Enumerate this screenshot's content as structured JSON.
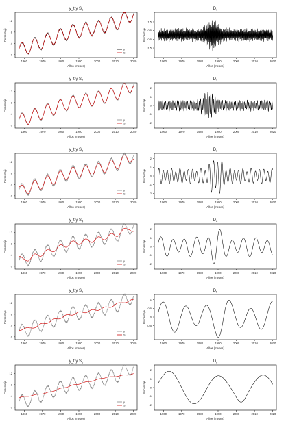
{
  "chart_data": [
    {
      "type": "line",
      "title": "y_t y S_1",
      "xlabel": "Años (meses)",
      "ylabel": "Porcentaje",
      "xlim": [
        1955,
        2022
      ],
      "ylim": [
        -1,
        15
      ],
      "yticks": [
        0,
        4,
        8,
        12
      ],
      "xticks": [
        1960,
        1970,
        1980,
        1990,
        2000,
        2010,
        2020
      ],
      "legend": [
        "y",
        "S"
      ],
      "series": [
        {
          "name": "y",
          "color": "#000000"
        },
        {
          "name": "S",
          "color": "#d01010"
        }
      ],
      "x_start": 1957,
      "x_end": 2020,
      "trend": [
        [
          1957,
          1.5
        ],
        [
          1970,
          4.5
        ],
        [
          1985,
          8.0
        ],
        [
          2000,
          9.5
        ],
        [
          2012,
          11.5
        ],
        [
          2020,
          14.5
        ]
      ],
      "cycle_period": 7,
      "cycle_amp": 2.4,
      "noise_amp": 0.3,
      "smooth_period": 0.5
    },
    {
      "type": "line",
      "title": "D_1",
      "xlabel": "Años (meses)",
      "ylabel": "Porcentaje",
      "xlim": [
        1955,
        2022
      ],
      "ylim": [
        -2.6,
        2.6
      ],
      "yticks": [
        -1.5,
        -0.5,
        0.5,
        1.5
      ],
      "xticks": [
        1960,
        1970,
        1980,
        1990,
        2000,
        2010,
        2020
      ],
      "x_start": 1957,
      "x_end": 2020,
      "detail_period": 0.35,
      "detail_amp": 0.55,
      "burst_center": 1987,
      "burst_amp": 1.6
    },
    {
      "type": "line",
      "title": "y_t y S_2",
      "xlabel": "Años (meses)",
      "ylabel": "Porcentaje",
      "xlim": [
        1955,
        2022
      ],
      "ylim": [
        -1,
        15
      ],
      "yticks": [
        0,
        4,
        8,
        12
      ],
      "xticks": [
        1960,
        1970,
        1980,
        1990,
        2000,
        2010,
        2020
      ],
      "legend": [
        "y",
        "S"
      ],
      "series": [
        {
          "name": "y",
          "color": "#888888"
        },
        {
          "name": "S",
          "color": "#d01010"
        }
      ],
      "x_start": 1957,
      "x_end": 2020,
      "trend": [
        [
          1957,
          1.5
        ],
        [
          1970,
          4.5
        ],
        [
          1985,
          8.0
        ],
        [
          2000,
          9.5
        ],
        [
          2012,
          11.5
        ],
        [
          2020,
          14.5
        ]
      ],
      "cycle_period": 7,
      "cycle_amp": 2.4,
      "noise_amp": 0.3,
      "smooth_period": 1.2
    },
    {
      "type": "line",
      "title": "D_2",
      "xlabel": "Años (meses)",
      "ylabel": "Porcentaje",
      "xlim": [
        1955,
        2022
      ],
      "ylim": [
        -2.6,
        2.6
      ],
      "yticks": [
        -2,
        -1,
        0,
        1,
        2
      ],
      "xticks": [
        1960,
        1970,
        1980,
        1990,
        2000,
        2010,
        2020
      ],
      "x_start": 1957,
      "x_end": 2020,
      "detail_period": 0.8,
      "detail_amp": 0.45,
      "burst_center": 1985,
      "burst_amp": 1.8
    },
    {
      "type": "line",
      "title": "y_t y S_3",
      "xlabel": "Años (meses)",
      "ylabel": "Porcentaje",
      "xlim": [
        1955,
        2022
      ],
      "ylim": [
        -1,
        15
      ],
      "yticks": [
        0,
        4,
        8,
        12
      ],
      "xticks": [
        1960,
        1970,
        1980,
        1990,
        2000,
        2010,
        2020
      ],
      "legend": [
        "y",
        "S"
      ],
      "series": [
        {
          "name": "y",
          "color": "#888888"
        },
        {
          "name": "S",
          "color": "#d01010"
        }
      ],
      "x_start": 1957,
      "x_end": 2020,
      "trend": [
        [
          1957,
          1.5
        ],
        [
          1970,
          4.5
        ],
        [
          1985,
          8.0
        ],
        [
          2000,
          9.5
        ],
        [
          2012,
          11.5
        ],
        [
          2020,
          14.5
        ]
      ],
      "cycle_period": 7,
      "cycle_amp": 2.4,
      "noise_amp": 0.3,
      "smooth_period": 2.5
    },
    {
      "type": "line",
      "title": "D_3",
      "xlabel": "Años (meses)",
      "ylabel": "Porcentaje",
      "xlim": [
        1955,
        2022
      ],
      "ylim": [
        -2.6,
        2.6
      ],
      "yticks": [
        -2,
        -1,
        0,
        1,
        2
      ],
      "xticks": [
        1960,
        1970,
        1980,
        1990,
        2000,
        2010,
        2020
      ],
      "x_start": 1957,
      "x_end": 2020,
      "detail_period": 2.3,
      "detail_amp": 0.7,
      "burst_center": 1989,
      "burst_amp": 1.7
    },
    {
      "type": "line",
      "title": "y_t y S_4",
      "xlabel": "Años (meses)",
      "ylabel": "Porcentaje",
      "xlim": [
        1955,
        2022
      ],
      "ylim": [
        -1,
        15
      ],
      "yticks": [
        0,
        4,
        8,
        12
      ],
      "xticks": [
        1960,
        1970,
        1980,
        1990,
        2000,
        2010,
        2020
      ],
      "legend": [
        "y",
        "S"
      ],
      "series": [
        {
          "name": "y",
          "color": "#888888"
        },
        {
          "name": "S",
          "color": "#d01010"
        }
      ],
      "x_start": 1957,
      "x_end": 2020,
      "trend": [
        [
          1957,
          1.5
        ],
        [
          1970,
          4.5
        ],
        [
          1985,
          8.0
        ],
        [
          2000,
          9.5
        ],
        [
          2012,
          11.5
        ],
        [
          2020,
          14.5
        ]
      ],
      "cycle_period": 7,
      "cycle_amp": 2.4,
      "noise_amp": 0.3,
      "smooth_period": 5
    },
    {
      "type": "line",
      "title": "D_4",
      "xlabel": "Años (meses)",
      "ylabel": "Porcentaje",
      "xlim": [
        1955,
        2022
      ],
      "ylim": [
        -2.6,
        2.6
      ],
      "yticks": [
        -2,
        -1,
        0,
        1,
        2
      ],
      "xticks": [
        1960,
        1970,
        1980,
        1990,
        2000,
        2010,
        2020
      ],
      "x_start": 1957,
      "x_end": 2020,
      "detail_period": 6.5,
      "detail_amp": 0.9,
      "burst_center": 1988,
      "burst_amp": 1.2
    },
    {
      "type": "line",
      "title": "y_t y S_5",
      "xlabel": "Años (meses)",
      "ylabel": "Porcentaje",
      "xlim": [
        1955,
        2022
      ],
      "ylim": [
        -1,
        15
      ],
      "yticks": [
        0,
        4,
        8,
        12
      ],
      "xticks": [
        1960,
        1970,
        1980,
        1990,
        2000,
        2010,
        2020
      ],
      "legend": [
        "y",
        "S"
      ],
      "series": [
        {
          "name": "y",
          "color": "#888888"
        },
        {
          "name": "S",
          "color": "#d01010"
        }
      ],
      "x_start": 1957,
      "x_end": 2020,
      "trend": [
        [
          1957,
          1.5
        ],
        [
          1970,
          4.5
        ],
        [
          1985,
          8.0
        ],
        [
          2000,
          9.5
        ],
        [
          2012,
          11.5
        ],
        [
          2020,
          14.5
        ]
      ],
      "cycle_period": 7,
      "cycle_amp": 2.4,
      "noise_amp": 0.3,
      "smooth_period": 12
    },
    {
      "type": "line",
      "title": "D_5",
      "xlabel": "Años (meses)",
      "ylabel": "Porcentaje",
      "xlim": [
        1955,
        2022
      ],
      "ylim": [
        -1.3,
        1.3
      ],
      "yticks": [
        -0.5,
        0,
        0.5,
        1.0
      ],
      "xticks": [
        1960,
        1970,
        1980,
        1990,
        2000,
        2010,
        2020
      ],
      "x_start": 1957,
      "x_end": 2020,
      "detail_period": 12,
      "detail_amp": 0.7,
      "burst_center": 1992,
      "burst_amp": 0.4
    },
    {
      "type": "line",
      "title": "y_t y S_6",
      "xlabel": "Años (meses)",
      "ylabel": "Porcentaje",
      "xlim": [
        1955,
        2022
      ],
      "ylim": [
        -1,
        15
      ],
      "yticks": [
        0,
        4,
        8,
        12
      ],
      "xticks": [
        1960,
        1970,
        1980,
        1990,
        2000,
        2010,
        2020
      ],
      "legend": [
        "y",
        "S"
      ],
      "series": [
        {
          "name": "y",
          "color": "#888888"
        },
        {
          "name": "S",
          "color": "#d01010"
        }
      ],
      "x_start": 1957,
      "x_end": 2020,
      "trend": [
        [
          1957,
          1.5
        ],
        [
          1970,
          4.5
        ],
        [
          1985,
          8.0
        ],
        [
          2000,
          9.5
        ],
        [
          2012,
          11.5
        ],
        [
          2020,
          14.5
        ]
      ],
      "cycle_period": 7,
      "cycle_amp": 2.4,
      "noise_amp": 0.3,
      "smooth_period": 30
    },
    {
      "type": "line",
      "title": "D_6",
      "xlabel": "Años (meses)",
      "ylabel": "Porcentaje",
      "xlim": [
        1955,
        2022
      ],
      "ylim": [
        -2.6,
        2.6
      ],
      "yticks": [
        -2,
        -1,
        0,
        1,
        2
      ],
      "xticks": [
        1960,
        1970,
        1980,
        1990,
        2000,
        2010,
        2020
      ],
      "x_start": 1957,
      "x_end": 2020,
      "detail_period": 26,
      "detail_amp": 1.5,
      "burst_center": 2003,
      "burst_amp": 0.6
    }
  ]
}
